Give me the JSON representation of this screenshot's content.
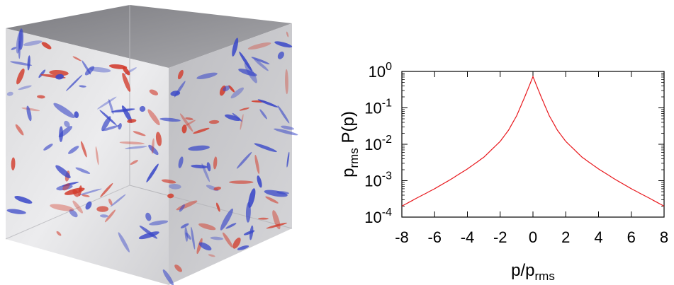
{
  "figure": {
    "left_panel": {
      "description_type": "3d-volume-render",
      "colors": {
        "box_face": "#c9c9cc",
        "box_face_light": "#e6e6e8",
        "box_top": "#8e8e92",
        "positive": "#d23a2a",
        "negative": "#3a48c8"
      }
    }
  },
  "chart_data": {
    "type": "line",
    "title": "",
    "xlabel": "p/p_rms",
    "ylabel": "p_rms P(p)",
    "xlabel_parts": {
      "base": "p/p",
      "sub": "rms"
    },
    "ylabel_parts": {
      "base": "p",
      "sub": "rms",
      "rest": " P(p)"
    },
    "x_ticks": [
      "-8",
      "-6",
      "-4",
      "-2",
      "0",
      "2",
      "4",
      "6",
      "8"
    ],
    "x_tick_values": [
      -8,
      -6,
      -4,
      -2,
      0,
      2,
      4,
      6,
      8
    ],
    "y_ticks": [
      {
        "base": "10",
        "exp": "0",
        "value": 1
      },
      {
        "base": "10",
        "exp": "-1",
        "value": 0.1
      },
      {
        "base": "10",
        "exp": "-2",
        "value": 0.01
      },
      {
        "base": "10",
        "exp": "-3",
        "value": 0.001
      },
      {
        "base": "10",
        "exp": "-4",
        "value": 0.0001
      }
    ],
    "xlim": [
      -8,
      8
    ],
    "ylim": [
      0.0001,
      1
    ],
    "yscale": "log",
    "grid": false,
    "series": [
      {
        "color": "#e8161b",
        "x": [
          -8,
          -7,
          -6,
          -5,
          -4,
          -3,
          -2,
          -1.5,
          -1,
          -0.5,
          0,
          0.5,
          1,
          1.5,
          2,
          3,
          4,
          5,
          6,
          7,
          8
        ],
        "y": [
          0.0002,
          0.00035,
          0.0006,
          0.0011,
          0.0021,
          0.0044,
          0.012,
          0.024,
          0.06,
          0.2,
          0.72,
          0.2,
          0.06,
          0.024,
          0.012,
          0.0044,
          0.0021,
          0.0011,
          0.0006,
          0.00035,
          0.0002
        ]
      }
    ]
  }
}
